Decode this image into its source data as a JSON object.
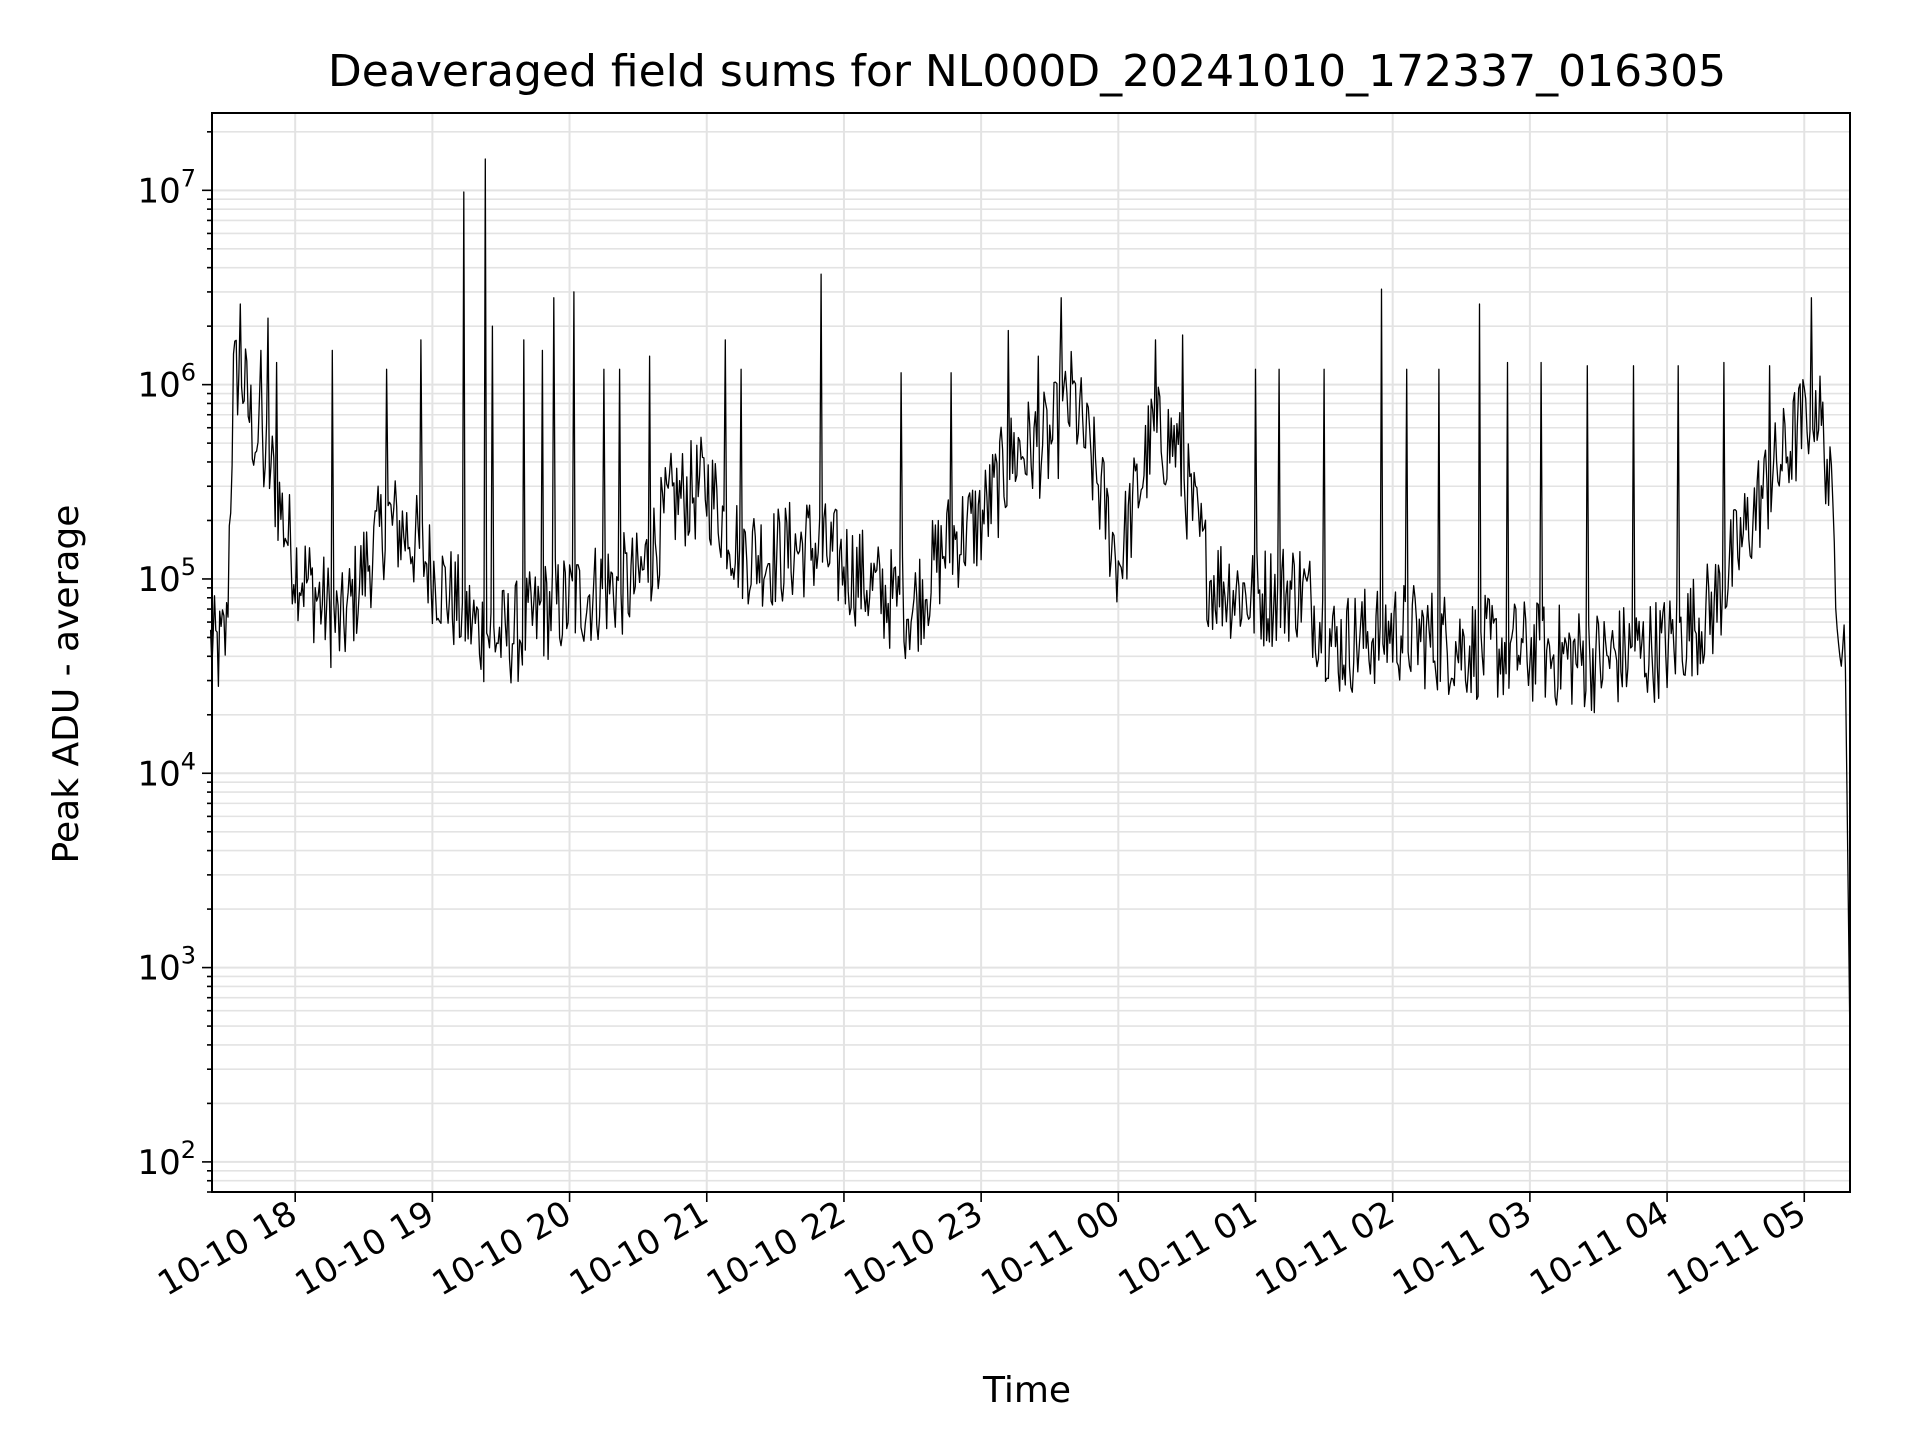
{
  "chart_data": {
    "type": "line",
    "title": "Deaveraged field sums for NL000D_20241010_172337_016305",
    "xlabel": "Time",
    "ylabel": "Peak ADU - average",
    "yscale": "log",
    "ylim": [
      70,
      25000000
    ],
    "xlim": [
      "2024-10-10 17:23:37",
      "2024-10-11 05:20:00"
    ],
    "grid": true,
    "x_ticks": [
      {
        "t": "2024-10-10 18:00",
        "label": "10-10 18"
      },
      {
        "t": "2024-10-10 19:00",
        "label": "10-10 19"
      },
      {
        "t": "2024-10-10 20:00",
        "label": "10-10 20"
      },
      {
        "t": "2024-10-10 21:00",
        "label": "10-10 21"
      },
      {
        "t": "2024-10-10 22:00",
        "label": "10-10 22"
      },
      {
        "t": "2024-10-10 23:00",
        "label": "10-10 23"
      },
      {
        "t": "2024-10-11 00:00",
        "label": "10-11 00"
      },
      {
        "t": "2024-10-11 01:00",
        "label": "10-11 01"
      },
      {
        "t": "2024-10-11 02:00",
        "label": "10-11 02"
      },
      {
        "t": "2024-10-11 03:00",
        "label": "10-11 03"
      },
      {
        "t": "2024-10-11 04:00",
        "label": "10-11 04"
      },
      {
        "t": "2024-10-11 05:00",
        "label": "10-11 05"
      }
    ],
    "y_ticks": [
      {
        "value": 100,
        "base": "10",
        "exp": "2"
      },
      {
        "value": 1000,
        "base": "10",
        "exp": "3"
      },
      {
        "value": 10000,
        "base": "10",
        "exp": "4"
      },
      {
        "value": 100000,
        "base": "10",
        "exp": "5"
      },
      {
        "value": 1000000,
        "base": "10",
        "exp": "6"
      },
      {
        "value": 10000000,
        "base": "10",
        "exp": "7"
      }
    ],
    "series": [
      {
        "color": "#000000",
        "points": [
          [
            "2024-10-10 17:23",
            45000
          ],
          [
            "2024-10-10 17:27",
            42000
          ],
          [
            "2024-10-10 17:30",
            52000
          ],
          [
            "2024-10-10 17:33",
            1000000
          ],
          [
            "2024-10-10 17:36",
            1250000
          ],
          [
            "2024-10-10 17:40",
            700000
          ],
          [
            "2024-10-10 17:45",
            450000
          ],
          [
            "2024-10-10 17:50",
            350000
          ],
          [
            "2024-10-10 17:55",
            200000
          ],
          [
            "2024-10-10 18:00",
            120000
          ],
          [
            "2024-10-10 18:10",
            80000
          ],
          [
            "2024-10-10 18:20",
            55000
          ],
          [
            "2024-10-10 18:30",
            110000
          ],
          [
            "2024-10-10 18:40",
            200000
          ],
          [
            "2024-10-10 18:50",
            170000
          ],
          [
            "2024-10-10 19:00",
            110000
          ],
          [
            "2024-10-10 19:10",
            75000
          ],
          [
            "2024-10-10 19:20",
            55000
          ],
          [
            "2024-10-10 19:30",
            50000
          ],
          [
            "2024-10-10 19:40",
            55000
          ],
          [
            "2024-10-10 19:50",
            70000
          ],
          [
            "2024-10-10 20:00",
            75000
          ],
          [
            "2024-10-10 20:15",
            90000
          ],
          [
            "2024-10-10 20:30",
            95000
          ],
          [
            "2024-10-10 20:45",
            250000
          ],
          [
            "2024-10-10 21:00",
            300000
          ],
          [
            "2024-10-10 21:15",
            140000
          ],
          [
            "2024-10-10 21:30",
            130000
          ],
          [
            "2024-10-10 21:45",
            150000
          ],
          [
            "2024-10-10 22:00",
            120000
          ],
          [
            "2024-10-10 22:15",
            85000
          ],
          [
            "2024-10-10 22:30",
            70000
          ],
          [
            "2024-10-10 22:45",
            150000
          ],
          [
            "2024-10-10 23:00",
            200000
          ],
          [
            "2024-10-10 23:15",
            450000
          ],
          [
            "2024-10-10 23:30",
            500000
          ],
          [
            "2024-10-10 23:40",
            850000
          ],
          [
            "2024-10-10 23:50",
            350000
          ],
          [
            "2024-10-11 00:00",
            120000
          ],
          [
            "2024-10-11 00:15",
            550000
          ],
          [
            "2024-10-11 00:25",
            500000
          ],
          [
            "2024-10-11 00:40",
            100000
          ],
          [
            "2024-10-11 01:00",
            80000
          ],
          [
            "2024-10-11 01:20",
            90000
          ],
          [
            "2024-10-11 01:35",
            45000
          ],
          [
            "2024-10-11 02:00",
            55000
          ],
          [
            "2024-10-11 02:30",
            45000
          ],
          [
            "2024-10-11 03:00",
            42000
          ],
          [
            "2024-10-11 03:30",
            38000
          ],
          [
            "2024-10-11 04:00",
            45000
          ],
          [
            "2024-10-11 04:20",
            70000
          ],
          [
            "2024-10-11 04:40",
            250000
          ],
          [
            "2024-10-11 05:00",
            650000
          ],
          [
            "2024-10-11 05:05",
            900000
          ],
          [
            "2024-10-11 05:10",
            400000
          ],
          [
            "2024-10-11 05:15",
            80000
          ],
          [
            "2024-10-11 05:18",
            35000
          ],
          [
            "2024-10-11 05:20",
            400
          ]
        ],
        "spikes": [
          [
            "2024-10-10 17:36",
            2600000
          ],
          [
            "2024-10-10 17:45",
            1500000
          ],
          [
            "2024-10-10 17:48",
            2200000
          ],
          [
            "2024-10-10 17:52",
            1300000
          ],
          [
            "2024-10-10 18:16",
            1500000
          ],
          [
            "2024-10-10 18:40",
            1200000
          ],
          [
            "2024-10-10 18:55",
            1700000
          ],
          [
            "2024-10-10 19:14",
            9800000
          ],
          [
            "2024-10-10 19:23",
            14500000
          ],
          [
            "2024-10-10 19:26",
            2000000
          ],
          [
            "2024-10-10 19:40",
            1700000
          ],
          [
            "2024-10-10 19:48",
            1500000
          ],
          [
            "2024-10-10 19:53",
            2800000
          ],
          [
            "2024-10-10 20:02",
            3000000
          ],
          [
            "2024-10-10 20:15",
            1200000
          ],
          [
            "2024-10-10 20:22",
            1200000
          ],
          [
            "2024-10-10 20:35",
            1400000
          ],
          [
            "2024-10-10 21:08",
            1700000
          ],
          [
            "2024-10-10 21:15",
            1200000
          ],
          [
            "2024-10-10 21:50",
            3700000
          ],
          [
            "2024-10-10 22:25",
            1150000
          ],
          [
            "2024-10-10 22:47",
            1150000
          ],
          [
            "2024-10-10 23:12",
            1900000
          ],
          [
            "2024-10-10 23:25",
            1400000
          ],
          [
            "2024-10-10 23:35",
            2800000
          ],
          [
            "2024-10-11 00:16",
            1700000
          ],
          [
            "2024-10-11 00:28",
            1800000
          ],
          [
            "2024-10-11 01:00",
            1200000
          ],
          [
            "2024-10-11 01:10",
            1200000
          ],
          [
            "2024-10-11 01:30",
            1200000
          ],
          [
            "2024-10-11 01:55",
            3100000
          ],
          [
            "2024-10-11 02:06",
            1200000
          ],
          [
            "2024-10-11 02:20",
            1200000
          ],
          [
            "2024-10-11 02:38",
            2600000
          ],
          [
            "2024-10-11 02:50",
            1300000
          ],
          [
            "2024-10-11 03:05",
            1300000
          ],
          [
            "2024-10-11 03:25",
            1250000
          ],
          [
            "2024-10-11 03:45",
            1250000
          ],
          [
            "2024-10-11 04:05",
            1250000
          ],
          [
            "2024-10-11 04:25",
            1300000
          ],
          [
            "2024-10-11 04:45",
            1250000
          ],
          [
            "2024-10-11 05:03",
            2800000
          ]
        ]
      }
    ]
  }
}
